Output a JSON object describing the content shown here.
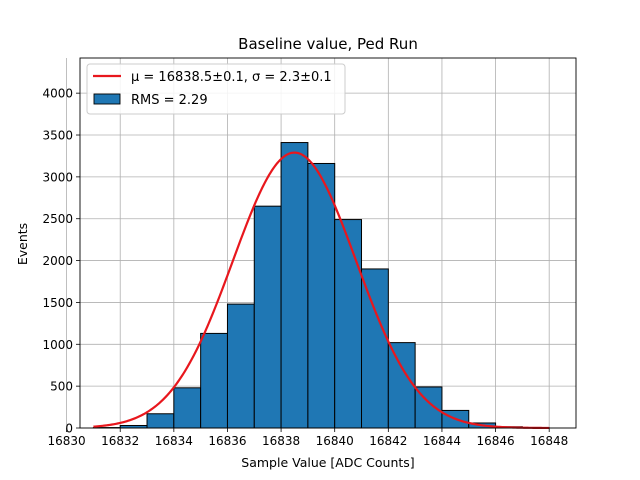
{
  "chart_data": {
    "type": "bar",
    "title": "Baseline value, Ped Run",
    "xlabel": "Sample Value [ADC Counts]",
    "ylabel": "Events",
    "xlim": [
      16830.5,
      16849
    ],
    "ylim": [
      0,
      4420
    ],
    "grid": true,
    "legend_position": "top-left",
    "xticks": [
      "16830",
      "16832",
      "16834",
      "16836",
      "16838",
      "16840",
      "16842",
      "16844",
      "16846",
      "16848"
    ],
    "yticks": [
      "0",
      "500",
      "1000",
      "1500",
      "2000",
      "2500",
      "3000",
      "3500",
      "4000"
    ],
    "histogram": {
      "name": "RMS = 2.29",
      "color": "#1f77b4",
      "edge_color": "#000000",
      "bin_edges": [
        16830,
        16831,
        16832,
        16833,
        16834,
        16835,
        16836,
        16837,
        16838,
        16839,
        16840,
        16841,
        16842,
        16843,
        16844,
        16845,
        16846,
        16847,
        16848
      ],
      "counts": [
        0,
        5,
        30,
        170,
        480,
        1130,
        1480,
        2650,
        3410,
        3160,
        2490,
        1900,
        1020,
        490,
        210,
        60,
        15,
        3
      ]
    },
    "fit": {
      "type": "gaussian",
      "label_tex": "μ = 16838.5±0.1, σ = 2.3±0.1",
      "color": "#e8171d",
      "mu": 16838.5,
      "sigma": 2.3,
      "amplitude": 3290,
      "x_range": [
        16831,
        16848
      ]
    }
  }
}
